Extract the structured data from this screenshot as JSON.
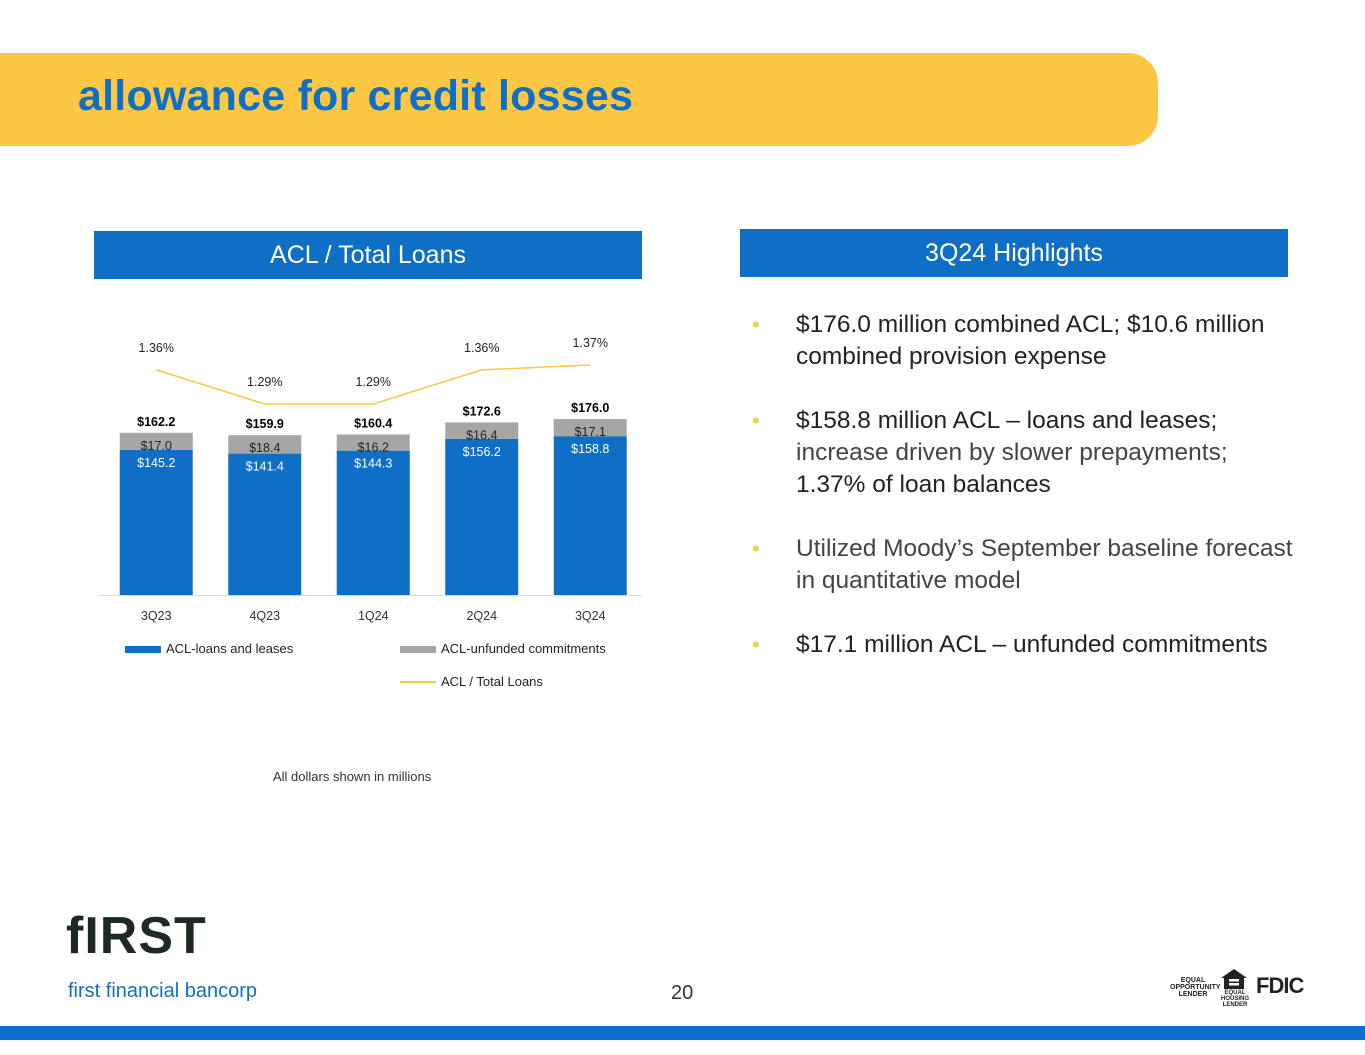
{
  "page": {
    "title": "allowance for credit losses",
    "page_number": "20",
    "footnote": "All dollars shown in millions"
  },
  "left_panel": {
    "header": "ACL / Total Loans"
  },
  "right_panel": {
    "header": "3Q24 Highlights",
    "bullets": [
      {
        "main": "$176.0 million combined ACL; $10.6 million combined provision expense",
        "sub": ""
      },
      {
        "main": "$158.8 million ACL – loans and leases;",
        "sub": "increase driven by slower prepayments;",
        "tail": "1.37% of loan balances"
      },
      {
        "main": "Utilized Moody’s September baseline forecast in quantitative model",
        "sub": ""
      },
      {
        "main": "$17.1 million ACL – unfunded commitments",
        "sub": ""
      }
    ]
  },
  "chart_data": {
    "type": "bar",
    "stacked": true,
    "categories": [
      "3Q23",
      "4Q23",
      "1Q24",
      "2Q24",
      "3Q24"
    ],
    "series": [
      {
        "name": "ACL-loans and leases",
        "values": [
          145.2,
          141.4,
          144.3,
          156.2,
          158.8
        ],
        "labels": [
          "$145.2",
          "$141.4",
          "$144.3",
          "$156.2",
          "$158.8"
        ],
        "color": "#0F6FC6"
      },
      {
        "name": "ACL-unfunded commitments",
        "values": [
          17.0,
          18.4,
          16.2,
          16.4,
          17.1
        ],
        "labels": [
          "$17.0",
          "$18.4",
          "$16.2",
          "$16.4",
          "$17.1"
        ],
        "color": "#A6A6A6"
      }
    ],
    "totals": [
      "$162.2",
      "$159.9",
      "$160.4",
      "$172.6",
      "$176.0"
    ],
    "line": {
      "name": "ACL / Total Loans",
      "values": [
        1.36,
        1.29,
        1.29,
        1.36,
        1.37
      ],
      "labels": [
        "1.36%",
        "1.29%",
        "1.29%",
        "1.36%",
        "1.37%"
      ],
      "color": "#FCC844"
    },
    "ylim": [
      0,
      190
    ],
    "legend": [
      "ACL-loans and leases",
      "ACL-unfunded commitments",
      "ACL / Total Loans"
    ]
  },
  "logo": {
    "wordmark": "fIRST",
    "company": "first financial bancorp"
  },
  "badges": {
    "equal_opportunity": "EQUAL OPPORTUNITY LENDER",
    "housing": "EQUAL HOUSING LENDER",
    "fdic": "FDIC"
  }
}
